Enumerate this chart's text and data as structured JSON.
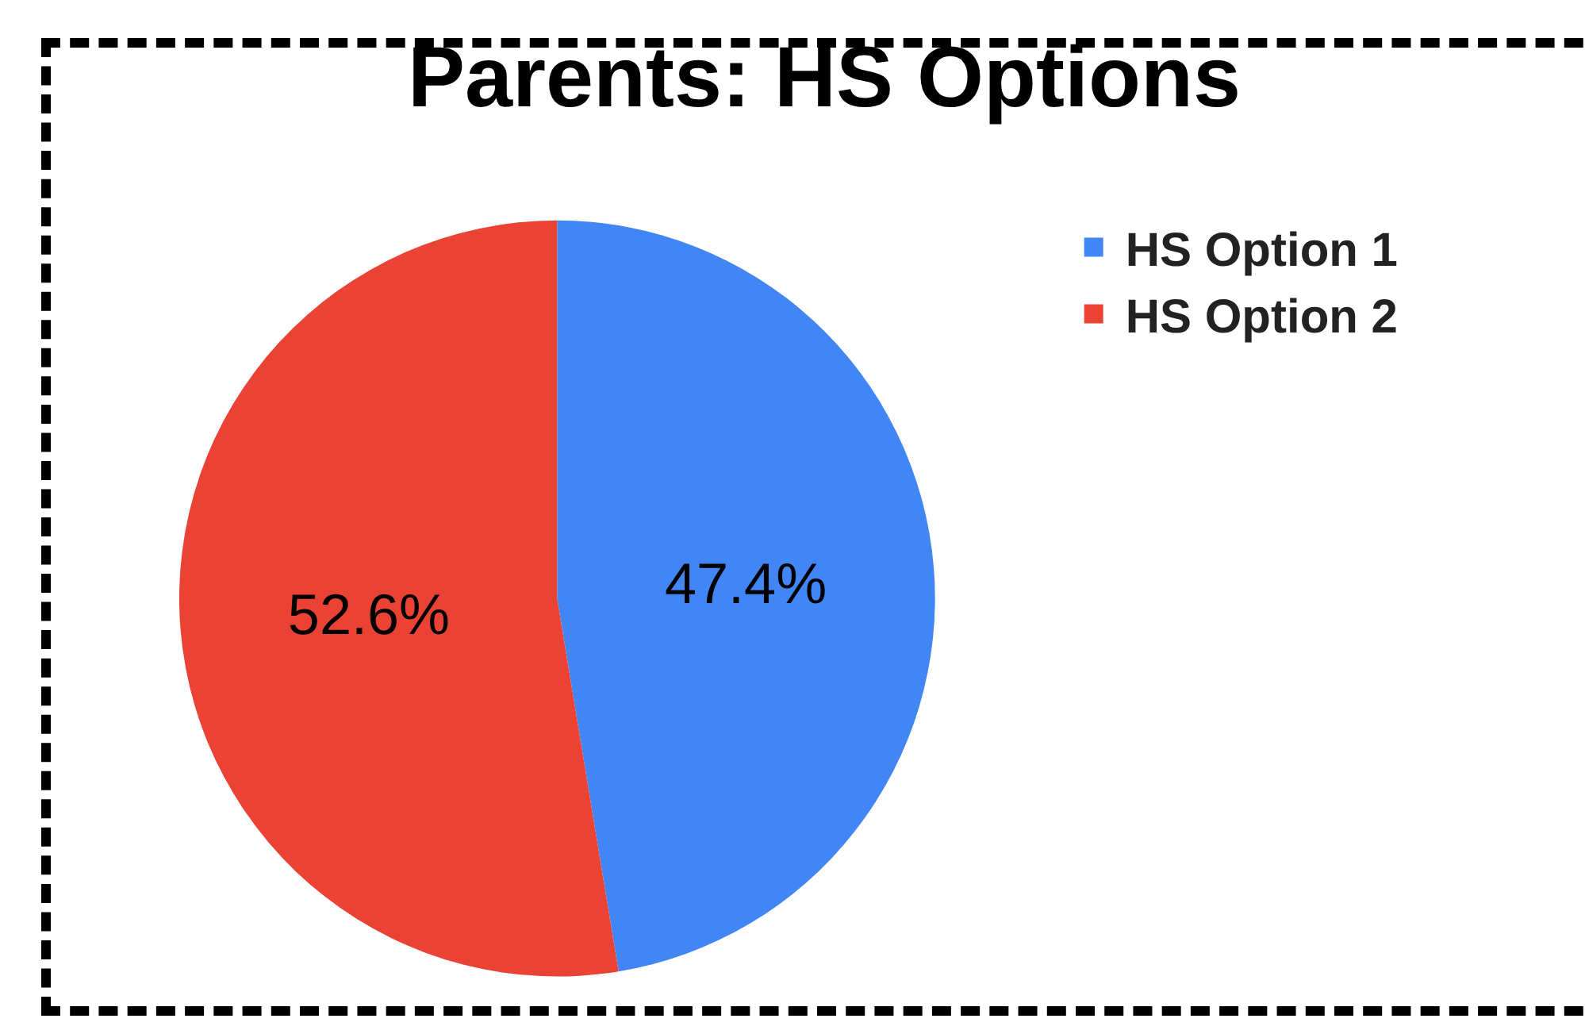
{
  "chart_data": {
    "type": "pie",
    "title": "Parents: HS Options",
    "categories": [
      "HS Option 1",
      "HS Option 2"
    ],
    "values": [
      47.4,
      52.6
    ],
    "colors": [
      "#4285f4",
      "#ea4335"
    ],
    "value_labels": [
      "47.4%",
      "52.6%"
    ],
    "legend": "top right"
  }
}
